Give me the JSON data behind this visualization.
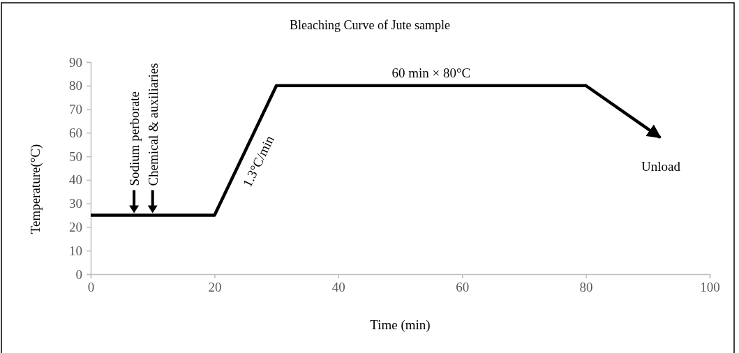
{
  "chart_data": {
    "type": "line",
    "title": "Bleaching Curve of Jute sample",
    "xlabel": "Time (min)",
    "ylabel": "Temperature(°C)",
    "series": [
      {
        "color": "#000000",
        "x": [
          0,
          20,
          30,
          80,
          92
        ],
        "values": [
          25,
          25,
          80,
          80,
          58
        ]
      }
    ],
    "xlim": [
      0,
      100
    ],
    "xticks": [
      0,
      20,
      40,
      60,
      80,
      100
    ],
    "ylim": [
      0,
      90
    ],
    "yticks": [
      0,
      10,
      20,
      30,
      40,
      50,
      60,
      70,
      80,
      90
    ],
    "grid": false,
    "marker": "none",
    "line_style": "solid",
    "annotations": [
      {
        "text": "Sodium perborate",
        "x": 7,
        "y": 25
      },
      {
        "text": "Chemical & auxiliaries",
        "x": 10,
        "y": 25
      },
      "1.3°C/min",
      {
        "text": "60 min × 80°C",
        "x": 55,
        "y": 80
      },
      "Unload"
    ]
  }
}
